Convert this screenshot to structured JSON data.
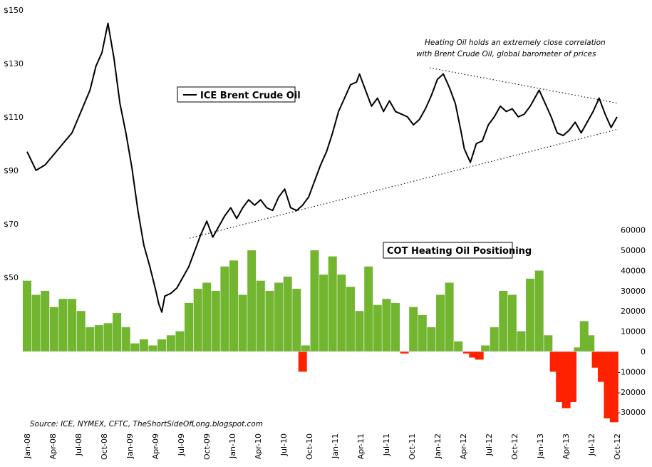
{
  "chart_data": {
    "type": "line+bar",
    "annotation": [
      "Heating Oil holds an extremely close correlation",
      "with Brent Crude Oil, global barometer of prices"
    ],
    "source": "Source: ICE, NYMEX, CFTC, TheShortSideOfLong.blogspot.com",
    "x_tick_labels": [
      "Jan-08",
      "Apr-08",
      "Jul-08",
      "Oct-08",
      "Jan-09",
      "Apr-09",
      "Jul-09",
      "Oct-09",
      "Jan-10",
      "Apr-10",
      "Jul-10",
      "Oct-10",
      "Jan-11",
      "Apr-11",
      "Jul-11",
      "Oct-11",
      "Jan-12",
      "Apr-12",
      "Jul-12",
      "Oct-12",
      "Jan-13",
      "Apr-13",
      "Jul-12",
      "Oct-12"
    ],
    "left_axis": {
      "tick_labels": [
        "$50",
        "$70",
        "$90",
        "$110",
        "$130",
        "$150"
      ],
      "ticks": [
        50,
        70,
        90,
        110,
        130,
        150
      ],
      "ylim": [
        30,
        150
      ]
    },
    "right_axis": {
      "tick_labels": [
        "-30000",
        "-20000",
        "-10000",
        "0",
        "10000",
        "20000",
        "30000",
        "40000",
        "50000",
        "60000"
      ],
      "ticks": [
        -30000,
        -20000,
        -10000,
        0,
        10000,
        20000,
        30000,
        40000,
        50000,
        60000
      ],
      "ylim": [
        -35000,
        60000
      ]
    },
    "series": [
      {
        "name": "ICE Brent Crude Oil",
        "type": "line",
        "axis": "left",
        "color": "#000000",
        "points": [
          [
            0,
            97
          ],
          [
            3,
            90
          ],
          [
            6,
            92
          ],
          [
            9,
            96
          ],
          [
            12,
            100
          ],
          [
            15,
            104
          ],
          [
            18,
            112
          ],
          [
            21,
            120
          ],
          [
            23,
            129
          ],
          [
            25,
            134
          ],
          [
            27,
            145
          ],
          [
            29,
            132
          ],
          [
            31,
            115
          ],
          [
            33,
            104
          ],
          [
            35,
            91
          ],
          [
            37,
            75
          ],
          [
            39,
            62
          ],
          [
            41,
            54
          ],
          [
            43,
            45
          ],
          [
            44,
            40
          ],
          [
            45,
            37
          ],
          [
            46,
            43
          ],
          [
            48,
            44
          ],
          [
            50,
            46
          ],
          [
            52,
            50
          ],
          [
            54,
            54
          ],
          [
            56,
            60
          ],
          [
            58,
            66
          ],
          [
            60,
            71
          ],
          [
            62,
            65
          ],
          [
            64,
            69
          ],
          [
            66,
            73
          ],
          [
            68,
            76
          ],
          [
            70,
            72
          ],
          [
            72,
            76
          ],
          [
            74,
            79
          ],
          [
            76,
            77
          ],
          [
            78,
            79
          ],
          [
            80,
            76
          ],
          [
            82,
            75
          ],
          [
            84,
            80
          ],
          [
            86,
            83
          ],
          [
            88,
            76
          ],
          [
            90,
            75
          ],
          [
            92,
            77
          ],
          [
            94,
            80
          ],
          [
            96,
            86
          ],
          [
            98,
            92
          ],
          [
            100,
            97
          ],
          [
            102,
            104
          ],
          [
            104,
            112
          ],
          [
            106,
            117
          ],
          [
            108,
            122
          ],
          [
            110,
            123
          ],
          [
            111,
            126
          ],
          [
            113,
            120
          ],
          [
            115,
            114
          ],
          [
            117,
            117
          ],
          [
            119,
            112
          ],
          [
            121,
            116
          ],
          [
            123,
            112
          ],
          [
            125,
            111
          ],
          [
            127,
            110
          ],
          [
            129,
            107
          ],
          [
            131,
            109
          ],
          [
            133,
            113
          ],
          [
            135,
            118
          ],
          [
            137,
            124
          ],
          [
            139,
            126
          ],
          [
            141,
            121
          ],
          [
            143,
            115
          ],
          [
            145,
            104
          ],
          [
            146,
            98
          ],
          [
            148,
            93
          ],
          [
            150,
            100
          ],
          [
            152,
            101
          ],
          [
            154,
            107
          ],
          [
            156,
            110
          ],
          [
            158,
            114
          ],
          [
            160,
            112
          ],
          [
            162,
            113
          ],
          [
            164,
            110
          ],
          [
            166,
            111
          ],
          [
            168,
            114
          ],
          [
            170,
            118
          ],
          [
            171,
            120
          ],
          [
            173,
            115
          ],
          [
            175,
            110
          ],
          [
            177,
            104
          ],
          [
            179,
            103
          ],
          [
            181,
            105
          ],
          [
            183,
            108
          ],
          [
            185,
            104
          ],
          [
            187,
            108
          ],
          [
            189,
            112
          ],
          [
            191,
            117
          ],
          [
            193,
            111
          ],
          [
            195,
            106
          ],
          [
            197,
            110
          ]
        ]
      },
      {
        "name": "COT Heating Oil Positioning",
        "type": "bar",
        "axis": "right",
        "color_positive": "#72b52f",
        "color_negative": "#ff2200",
        "points": [
          [
            0,
            35000
          ],
          [
            3,
            28000
          ],
          [
            6,
            30000
          ],
          [
            9,
            22000
          ],
          [
            12,
            26000
          ],
          [
            15,
            26000
          ],
          [
            18,
            20000
          ],
          [
            21,
            12000
          ],
          [
            24,
            13000
          ],
          [
            27,
            14000
          ],
          [
            30,
            19000
          ],
          [
            33,
            12000
          ],
          [
            36,
            4000
          ],
          [
            39,
            6000
          ],
          [
            42,
            3000
          ],
          [
            45,
            6000
          ],
          [
            48,
            8000
          ],
          [
            51,
            10000
          ],
          [
            54,
            24000
          ],
          [
            57,
            31000
          ],
          [
            60,
            34000
          ],
          [
            63,
            30000
          ],
          [
            66,
            42000
          ],
          [
            69,
            45000
          ],
          [
            72,
            28000
          ],
          [
            75,
            50000
          ],
          [
            78,
            35000
          ],
          [
            81,
            30000
          ],
          [
            84,
            34000
          ],
          [
            87,
            37000
          ],
          [
            90,
            31000
          ],
          [
            92,
            -10000
          ],
          [
            93,
            3000
          ],
          [
            96,
            50000
          ],
          [
            99,
            38000
          ],
          [
            102,
            47000
          ],
          [
            105,
            38000
          ],
          [
            108,
            32000
          ],
          [
            111,
            20000
          ],
          [
            114,
            42000
          ],
          [
            117,
            23000
          ],
          [
            120,
            26000
          ],
          [
            123,
            24000
          ],
          [
            126,
            -1000
          ],
          [
            129,
            22000
          ],
          [
            132,
            18000
          ],
          [
            135,
            12000
          ],
          [
            138,
            28000
          ],
          [
            141,
            34000
          ],
          [
            144,
            5000
          ],
          [
            147,
            -1000
          ],
          [
            149,
            -3000
          ],
          [
            151,
            -4000
          ],
          [
            153,
            3000
          ],
          [
            156,
            12000
          ],
          [
            159,
            30000
          ],
          [
            162,
            28000
          ],
          [
            165,
            10000
          ],
          [
            168,
            36000
          ],
          [
            171,
            40000
          ],
          [
            174,
            8000
          ],
          [
            176,
            -10000
          ],
          [
            178,
            -25000
          ],
          [
            180,
            -28000
          ],
          [
            182,
            -25000
          ],
          [
            184,
            2000
          ],
          [
            186,
            15000
          ],
          [
            188,
            8000
          ],
          [
            190,
            -8000
          ],
          [
            192,
            -15000
          ],
          [
            194,
            -33000
          ],
          [
            196,
            -35000
          ]
        ]
      }
    ]
  }
}
